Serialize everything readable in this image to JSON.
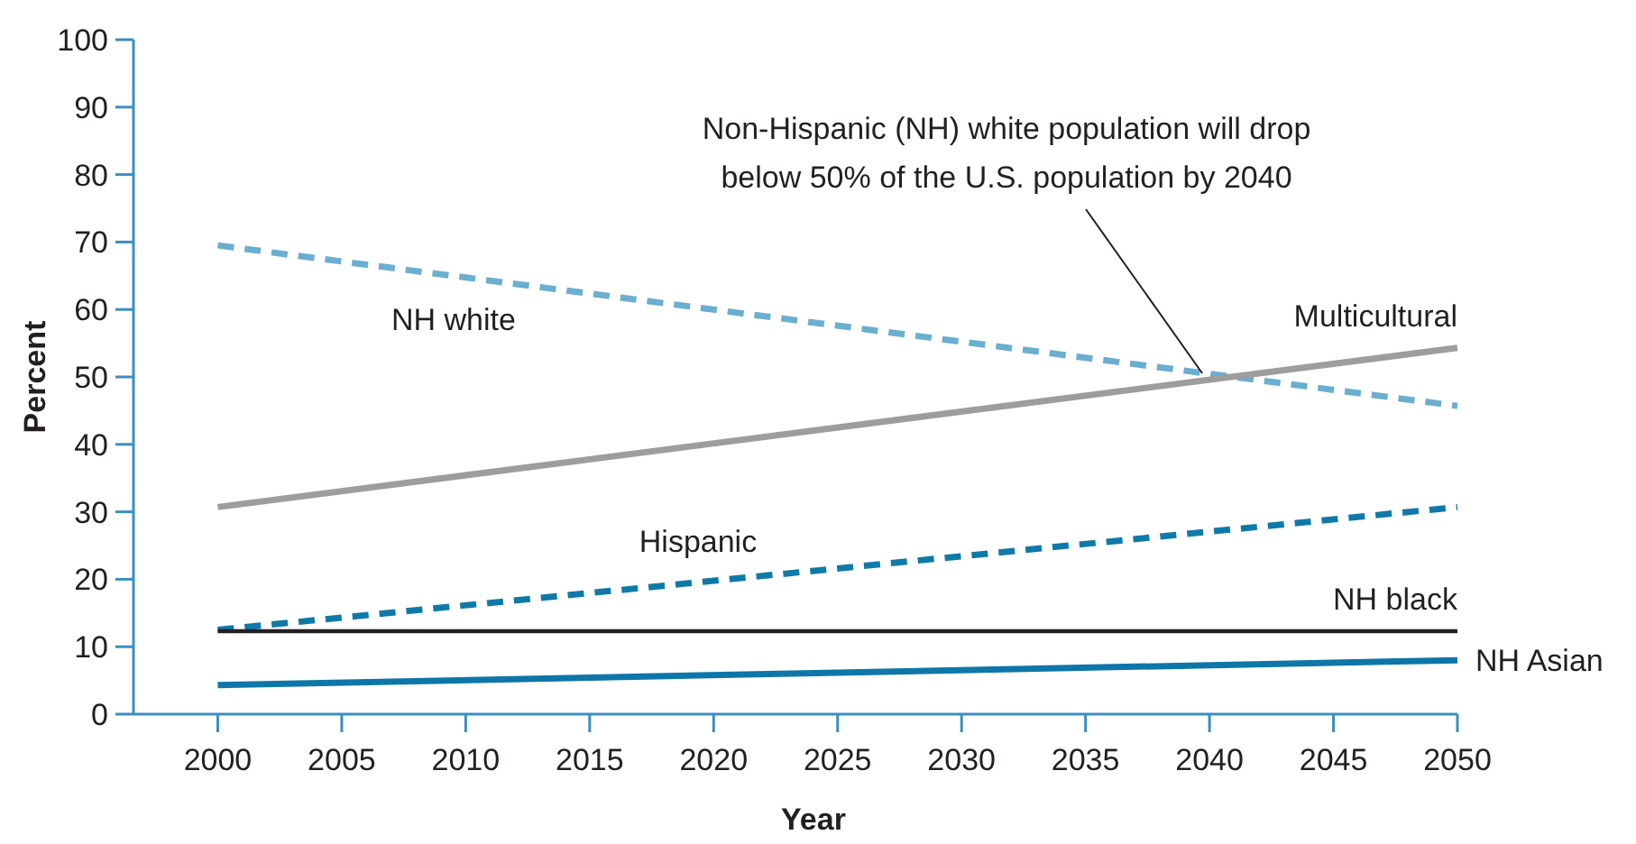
{
  "chart_data": {
    "type": "line",
    "xlabel": "Year",
    "ylabel": "Percent",
    "x": [
      2000,
      2050
    ],
    "xlim": [
      1996.6,
      2050
    ],
    "xticks": [
      2000,
      2005,
      2010,
      2015,
      2020,
      2025,
      2030,
      2035,
      2040,
      2045,
      2050
    ],
    "ylim": [
      0,
      100
    ],
    "yticks": [
      0,
      10,
      20,
      30,
      40,
      50,
      60,
      70,
      80,
      90,
      100
    ],
    "grid": false,
    "marker": "none",
    "series": [
      {
        "name": "NH white",
        "color": "#6aaed0",
        "values": [
          69.5,
          45.7
        ],
        "line_style": "dashed"
      },
      {
        "name": "Multicultural",
        "color": "#9d9d9d",
        "values": [
          30.7,
          54.3
        ],
        "line_style": "solid"
      },
      {
        "name": "Hispanic",
        "color": "#0f7aa8",
        "values": [
          12.5,
          30.7
        ],
        "line_style": "dashed"
      },
      {
        "name": "NH black",
        "color": "#231f20",
        "values": [
          12.3,
          12.3
        ],
        "line_style": "solid"
      },
      {
        "name": "NH Asian",
        "color": "#0e76a8",
        "values": [
          4.3,
          8.0
        ],
        "line_style": "solid"
      }
    ],
    "annotations": [
      {
        "text": "Non-Hispanic (NH) white population will drop below 50% of the U.S. population by 2040",
        "x": 2040,
        "y": 50
      }
    ]
  }
}
